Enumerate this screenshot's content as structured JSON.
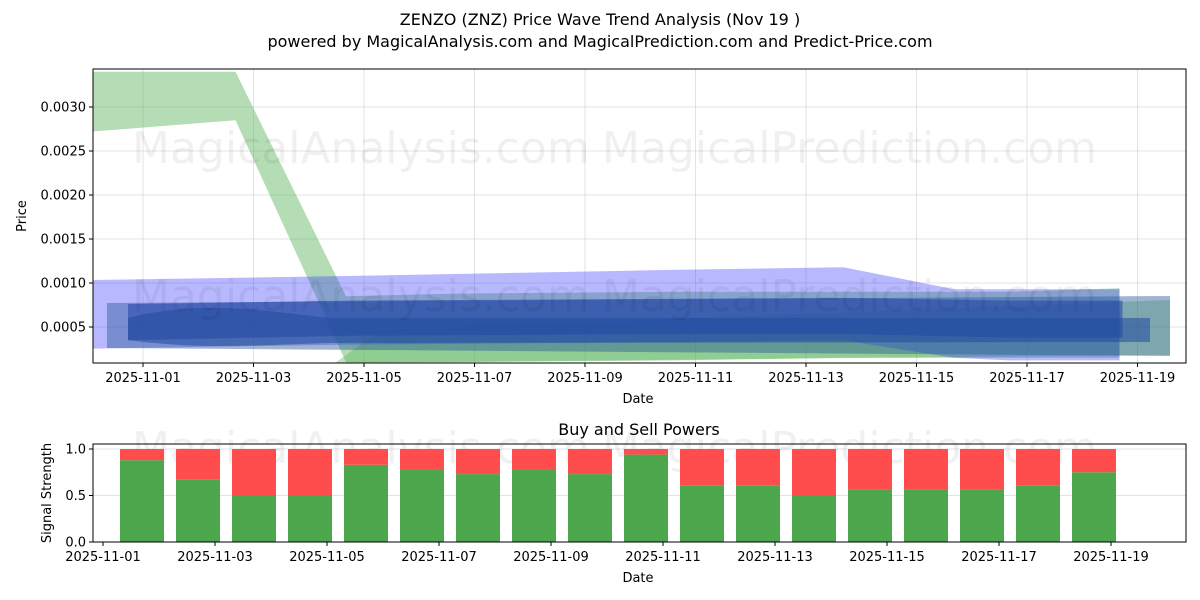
{
  "header": {
    "title": "ZENZO (ZNZ) Price Wave Trend Analysis (Nov 19 )",
    "subtitle": "powered by MagicalAnalysis.com and MagicalPrediction.com and Predict-Price.com"
  },
  "watermarks": [
    "MagicalAnalysis.com",
    "MagicalPrediction.com"
  ],
  "colors": {
    "green_band": "#4caf50",
    "blue_band": "#3333ff",
    "buy": "#4ca64c",
    "sell": "#ff4c4c"
  },
  "chart_data": [
    {
      "type": "area",
      "title": "ZENZO (ZNZ) Price Wave Trend Analysis (Nov 19 )",
      "xlabel": "Date",
      "ylabel": "Price",
      "ylim": [
        9e-05,
        0.00343
      ],
      "grid": true,
      "x_ticks": [
        "2025-11-01",
        "2025-11-03",
        "2025-11-05",
        "2025-11-07",
        "2025-11-09",
        "2025-11-11",
        "2025-11-13",
        "2025-11-15",
        "2025-11-17",
        "2025-11-19"
      ],
      "y_ticks": [
        "0.0005",
        "0.0010",
        "0.0015",
        "0.0020",
        "0.0025",
        "0.0030"
      ],
      "series": [
        {
          "name": "green wave band (wide)",
          "color": "#4caf50",
          "x": [
            "2025-10-31",
            "2025-11-03",
            "2025-11-05",
            "2025-11-07",
            "2025-11-11",
            "2025-11-14",
            "2025-11-16",
            "2025-11-17",
            "2025-11-19"
          ],
          "upper": [
            0.0034,
            0.0034,
            0.00085,
            0.00088,
            0.0009,
            0.0009,
            0.0009,
            0.0009,
            0.00094
          ],
          "lower": [
            0.0027,
            0.00285,
            0.0001,
            0.0001,
            0.00012,
            0.00015,
            0.00015,
            0.00015,
            0.00015
          ]
        },
        {
          "name": "blue wave band (outer)",
          "color": "#3333ff",
          "x": [
            "2025-10-31",
            "2025-11-05",
            "2025-11-11",
            "2025-11-14",
            "2025-11-16",
            "2025-11-17",
            "2025-11-19"
          ],
          "upper": [
            0.00103,
            0.00108,
            0.00115,
            0.00118,
            0.00093,
            0.00093,
            0.00093
          ],
          "lower": [
            0.00025,
            0.0003,
            0.00033,
            0.00035,
            0.00015,
            0.00012,
            0.00012
          ]
        },
        {
          "name": "blue wave band (inner)",
          "color": "#2a4fa8",
          "x": [
            "2025-11-01",
            "2025-11-05",
            "2025-11-11",
            "2025-11-14",
            "2025-11-17",
            "2025-11-19"
          ],
          "upper": [
            0.00076,
            0.0008,
            0.00082,
            0.00083,
            0.0008,
            0.0008
          ],
          "lower": [
            0.00035,
            0.0004,
            0.00042,
            0.00042,
            0.00038,
            0.00038
          ]
        }
      ]
    },
    {
      "type": "bar",
      "stacked": true,
      "title": "Buy and Sell Powers",
      "xlabel": "Date",
      "ylabel": "Signal Strength",
      "ylim": [
        0,
        1.05
      ],
      "y_ticks": [
        "0.0",
        "0.5",
        "1.0"
      ],
      "x_ticks": [
        "2025-11-01",
        "2025-11-03",
        "2025-11-05",
        "2025-11-07",
        "2025-11-09",
        "2025-11-11",
        "2025-11-13",
        "2025-11-15",
        "2025-11-17",
        "2025-11-19"
      ],
      "categories": [
        "2025-11-02",
        "2025-11-03",
        "2025-11-04",
        "2025-11-05",
        "2025-11-06",
        "2025-11-07",
        "2025-11-08",
        "2025-11-09",
        "2025-11-10",
        "2025-11-11",
        "2025-11-12",
        "2025-11-13",
        "2025-11-14",
        "2025-11-15",
        "2025-11-16",
        "2025-11-17",
        "2025-11-18",
        "2025-11-19"
      ],
      "series": [
        {
          "name": "Buy",
          "color": "#4ca64c",
          "values": [
            0.88,
            0.67,
            0.5,
            0.5,
            0.83,
            0.78,
            0.73,
            0.78,
            0.73,
            0.94,
            0.61,
            0.61,
            0.5,
            0.56,
            0.56,
            0.56,
            0.61,
            0.75
          ]
        },
        {
          "name": "Sell",
          "color": "#ff4c4c",
          "values": [
            0.12,
            0.33,
            0.5,
            0.5,
            0.17,
            0.22,
            0.27,
            0.22,
            0.27,
            0.06,
            0.39,
            0.39,
            0.5,
            0.44,
            0.44,
            0.44,
            0.39,
            0.25
          ]
        }
      ]
    }
  ]
}
